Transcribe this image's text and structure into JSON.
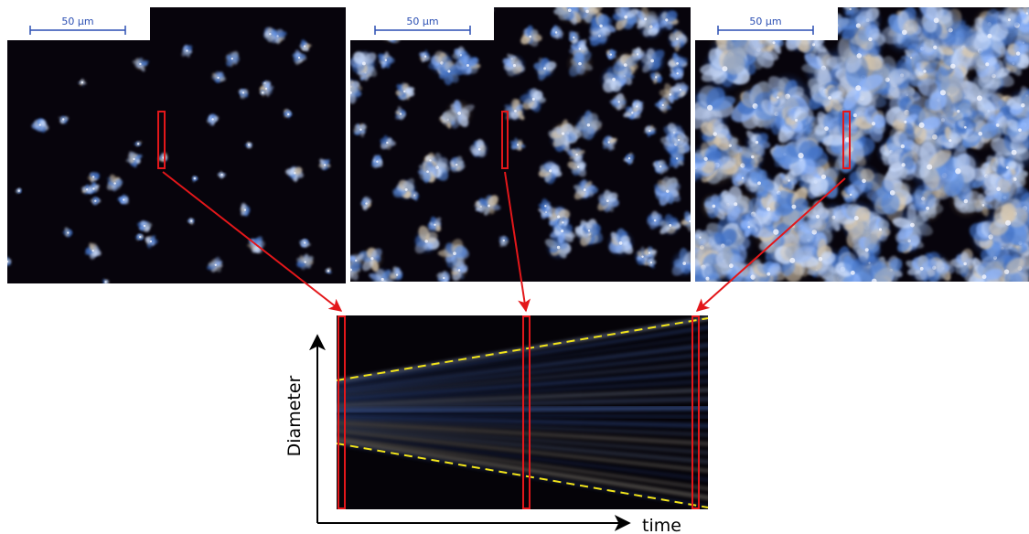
{
  "panels": [
    {
      "id": "panel-1",
      "scale_label": "50 µm",
      "density": 0.12
    },
    {
      "id": "panel-2",
      "scale_label": "50 µm",
      "density": 0.45
    },
    {
      "id": "panel-3",
      "scale_label": "50 µm",
      "density": 1.0
    }
  ],
  "axes": {
    "y_label": "Diameter",
    "x_label": "time"
  },
  "colors": {
    "marker": "#e3171a",
    "arrow": "#e3171a",
    "boundary": "#f2e41a",
    "scale_bar": "#2b4fb3",
    "background": "#07040c"
  }
}
